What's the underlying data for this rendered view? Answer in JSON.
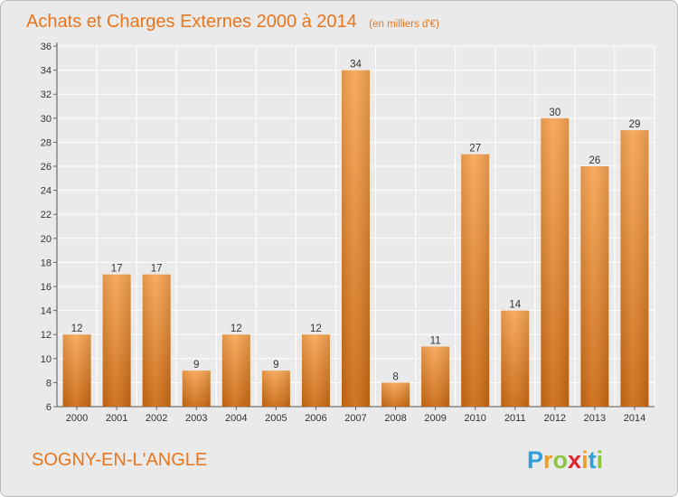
{
  "chart_data": {
    "type": "bar",
    "title": "Achats et Charges Externes 2000 à 2014",
    "subtitle": "(en milliers d'€)",
    "categories": [
      "2000",
      "2001",
      "2002",
      "2003",
      "2004",
      "2005",
      "2006",
      "2007",
      "2008",
      "2009",
      "2010",
      "2011",
      "2012",
      "2013",
      "2014"
    ],
    "values": [
      12,
      17,
      17,
      9,
      12,
      9,
      12,
      34,
      8,
      11,
      27,
      14,
      30,
      26,
      29
    ],
    "yticks": [
      6,
      8,
      10,
      12,
      14,
      16,
      18,
      20,
      22,
      24,
      26,
      28,
      30,
      32,
      34,
      36
    ],
    "ylim": [
      6,
      36
    ],
    "grid": true,
    "bar_color_light": "#f7a553",
    "bar_color_dark": "#cc6a12"
  },
  "footer": {
    "commune": "SOGNY-EN-L'ANGLE",
    "logo": {
      "letters": [
        "P",
        "r",
        "o",
        "x",
        "i",
        "t",
        "i"
      ],
      "colors": [
        "#2e9fd8",
        "#f39c21",
        "#8cc63f",
        "#e2232a",
        "#f39c21",
        "#2e9fd8",
        "#8cc63f"
      ]
    }
  }
}
